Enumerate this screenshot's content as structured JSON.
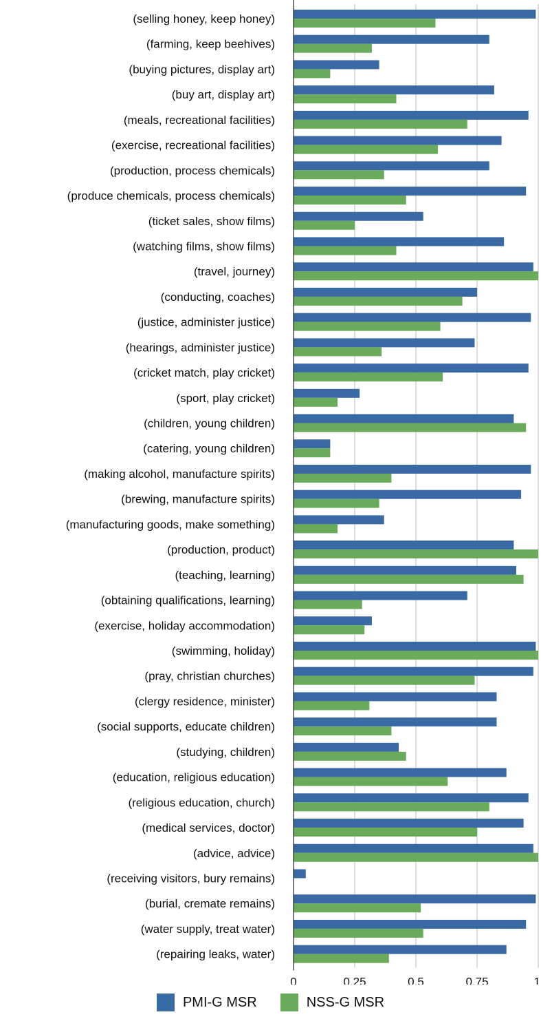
{
  "chart_data": {
    "type": "bar",
    "orientation": "horizontal",
    "categories": [
      "(selling honey, keep honey)",
      "(farming, keep beehives)",
      "(buying pictures, display art)",
      "(buy art, display art)",
      "(meals, recreational facilities)",
      "(exercise, recreational facilities)",
      "(production, process chemicals)",
      "(produce chemicals, process chemicals)",
      "(ticket sales, show films)",
      "(watching films, show films)",
      "(travel, journey)",
      "(conducting, coaches)",
      "(justice, administer justice)",
      "(hearings, administer justice)",
      "(cricket match, play cricket)",
      "(sport, play cricket)",
      "(children, young children)",
      "(catering, young children)",
      "(making alcohol, manufacture spirits)",
      "(brewing, manufacture spirits)",
      "(manufacturing goods, make something)",
      "(production, product)",
      "(teaching, learning)",
      "(obtaining qualifications, learning)",
      "(exercise, holiday accommodation)",
      "(swimming, holiday)",
      "(pray, christian churches)",
      "(clergy residence, minister)",
      "(social supports, educate children)",
      "(studying, children)",
      "(education, religious education)",
      "(religious education, church)",
      "(medical services, doctor)",
      "(advice, advice)",
      "(receiving visitors, bury remains)",
      "(burial, cremate remains)",
      "(water supply, treat water)",
      "(repairing leaks, water)"
    ],
    "series": [
      {
        "name": "PMI-G MSR",
        "color": "#3a6aa3",
        "values": [
          0.99,
          0.8,
          0.35,
          0.82,
          0.96,
          0.85,
          0.8,
          0.95,
          0.53,
          0.86,
          0.98,
          0.75,
          0.97,
          0.74,
          0.96,
          0.27,
          0.9,
          0.15,
          0.97,
          0.93,
          0.37,
          0.9,
          0.91,
          0.71,
          0.32,
          0.99,
          0.98,
          0.83,
          0.83,
          0.43,
          0.87,
          0.96,
          0.94,
          0.98,
          0.05,
          0.99,
          0.95,
          0.87
        ]
      },
      {
        "name": "NSS-G MSR",
        "color": "#6aab5b",
        "values": [
          0.58,
          0.32,
          0.15,
          0.42,
          0.71,
          0.59,
          0.37,
          0.46,
          0.25,
          0.42,
          1.0,
          0.69,
          0.6,
          0.36,
          0.61,
          0.18,
          0.95,
          0.15,
          0.4,
          0.35,
          0.18,
          1.0,
          0.94,
          0.28,
          0.29,
          1.0,
          0.74,
          0.31,
          0.4,
          0.46,
          0.63,
          0.8,
          0.75,
          1.0,
          0.0,
          0.52,
          0.53,
          0.39
        ]
      }
    ],
    "xlim": [
      0,
      1
    ],
    "xticks": [
      "0",
      "0.25",
      "0.5",
      "0.75",
      "1"
    ],
    "grid": true,
    "legend_position": "bottom"
  }
}
